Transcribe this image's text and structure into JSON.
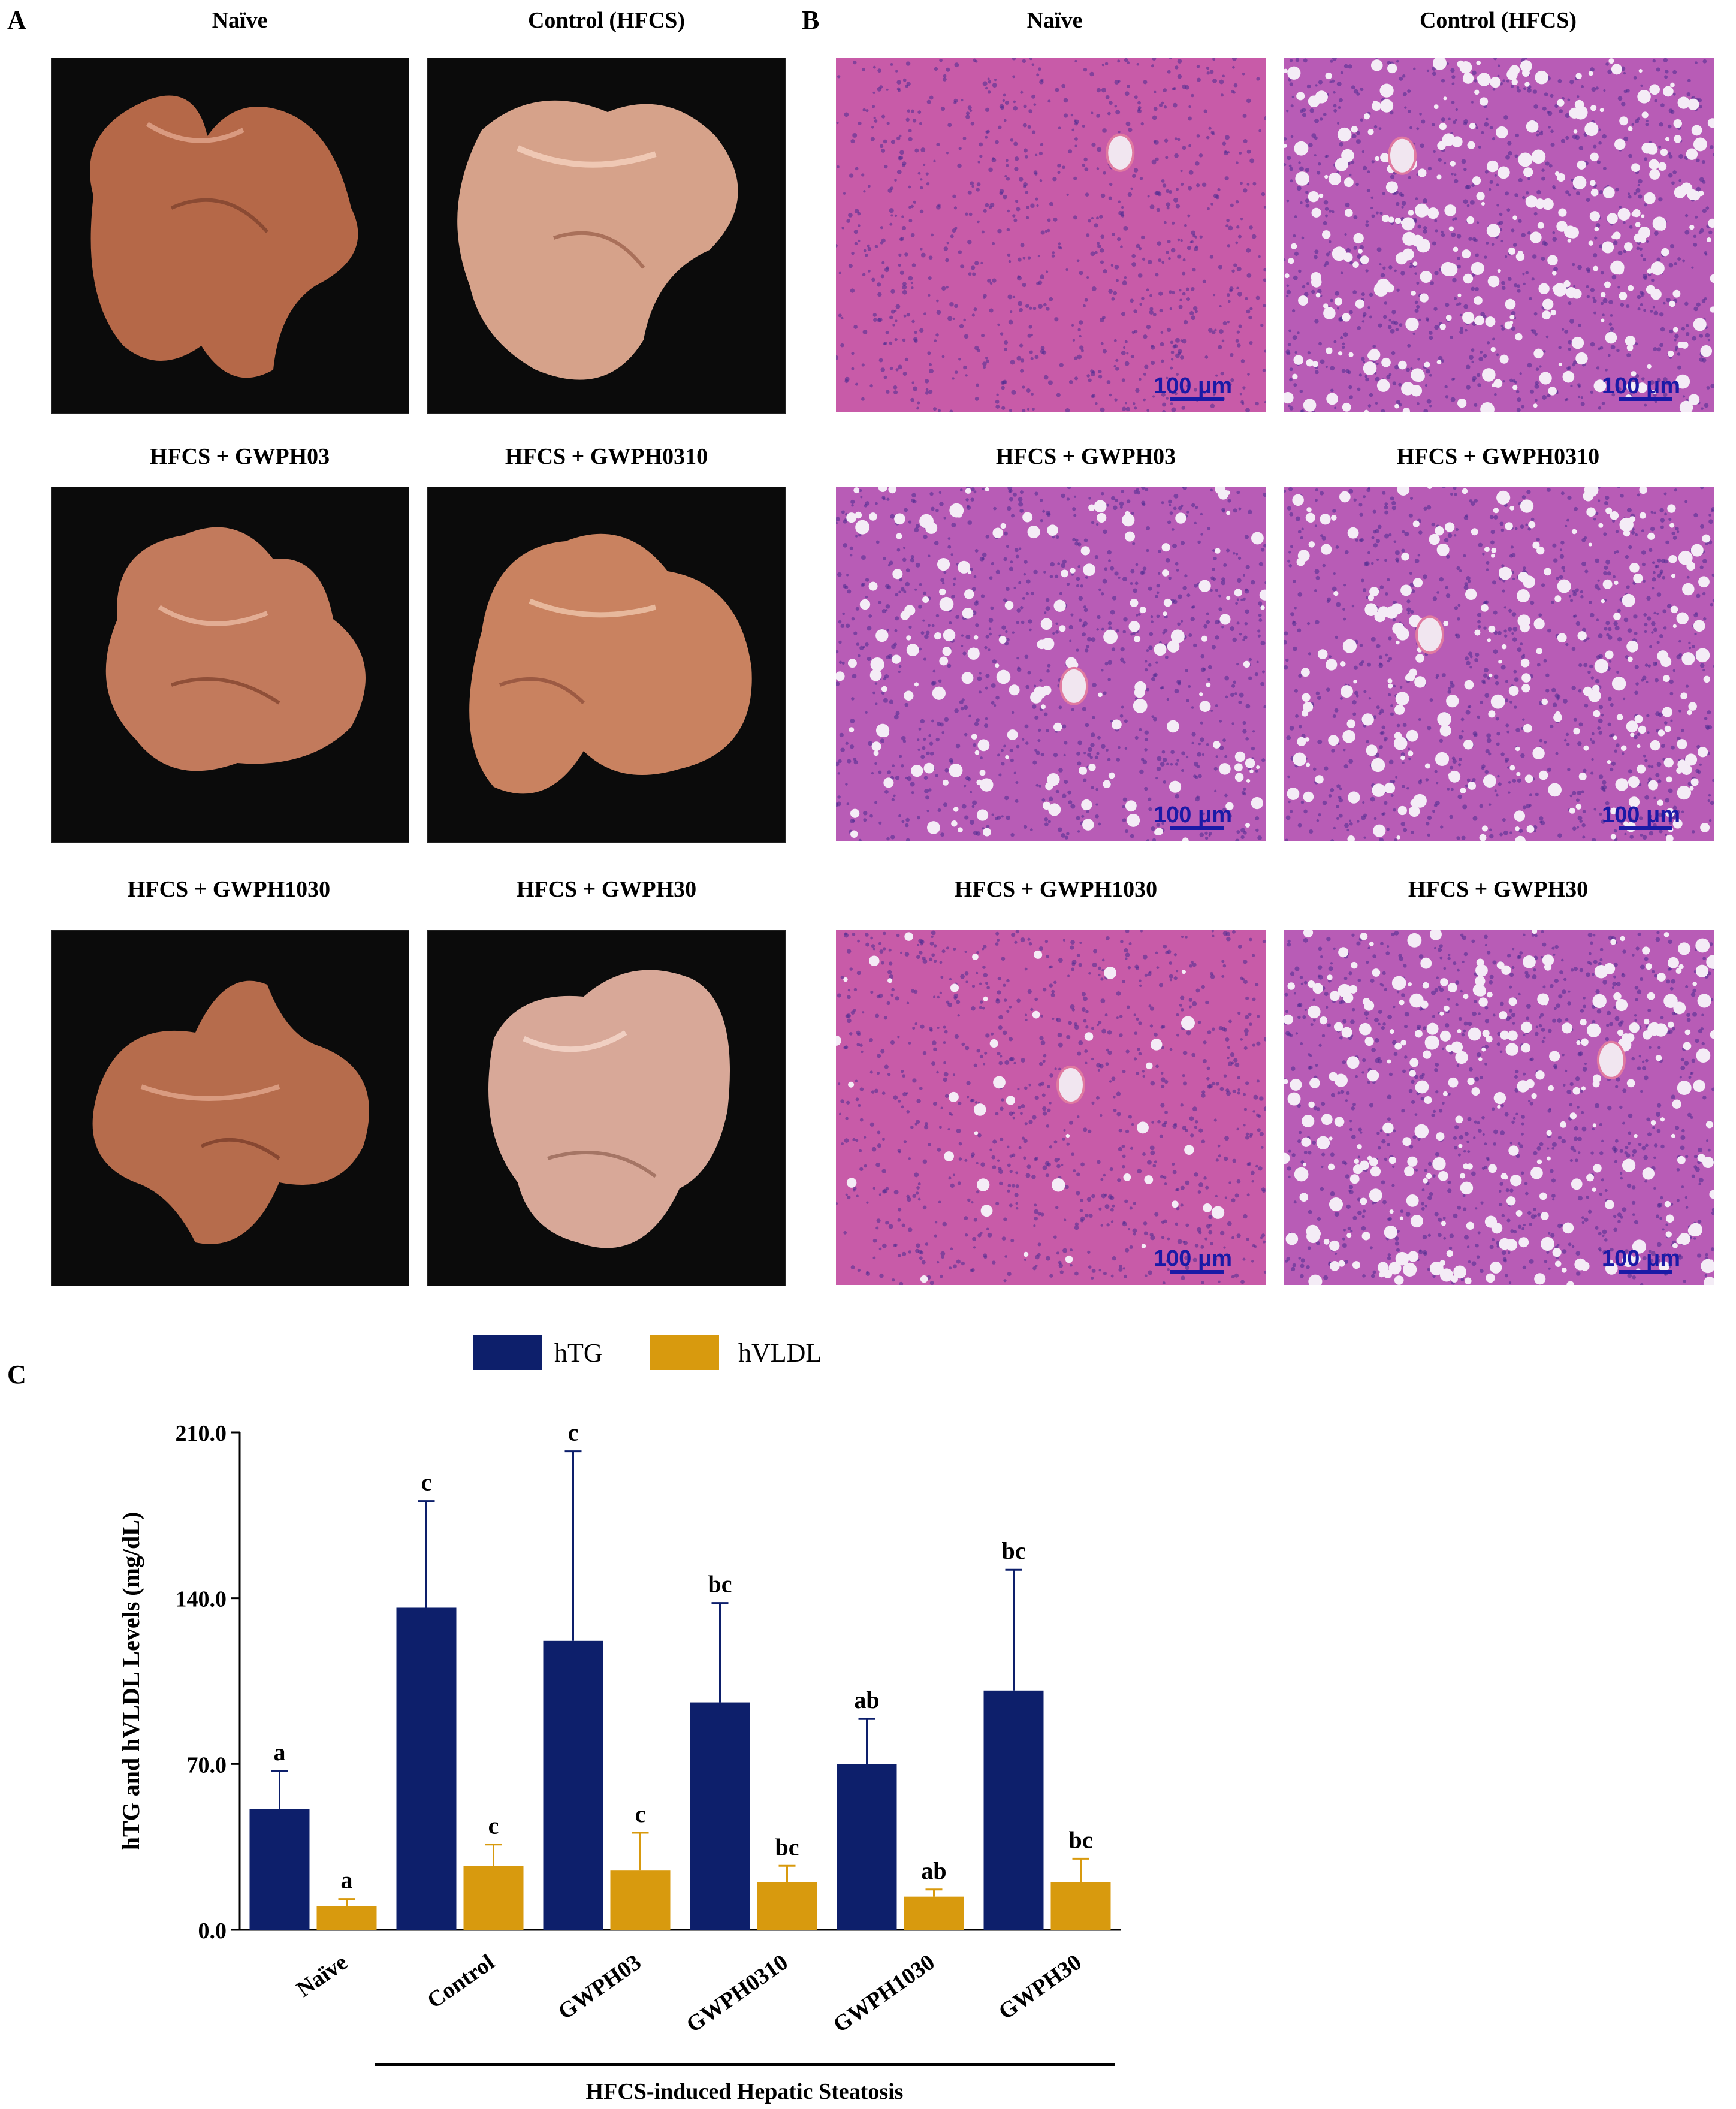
{
  "panels": {
    "a": {
      "letter": "A"
    },
    "b": {
      "letter": "B"
    },
    "c": {
      "letter": "C"
    }
  },
  "groups": [
    {
      "label": "Naïve"
    },
    {
      "label": "Control (HFCS)"
    },
    {
      "label": "HFCS + GWPH03"
    },
    {
      "label": "HFCS + GWPH0310"
    },
    {
      "label": "HFCS + GWPH1030"
    },
    {
      "label": "HFCS + GWPH30"
    }
  ],
  "scale_bar": "100 μm",
  "colors": {
    "hTG": "#0d1f6b",
    "hVLDL": "#d89a0e",
    "tissue_bg": "#0b0b0b",
    "liver": "#b76a4d",
    "he_stain": "#c24fb0",
    "scale_text": "#1a1aa6"
  },
  "chart_data": {
    "type": "bar",
    "title": "",
    "ylabel": "hTG and hVLDL Levels (mg/dL)",
    "xlabel": "",
    "ylim": [
      0,
      210
    ],
    "yticks": [
      "0.0",
      "70.0",
      "140.0",
      "210.0"
    ],
    "categories": [
      "Naïve",
      "Control",
      "GWPH03",
      "GWPH0310",
      "GWPH1030",
      "GWPH30"
    ],
    "group_label": "HFCS-induced Hepatic Steatosis",
    "series": [
      {
        "name": "hTG",
        "values": [
          51,
          136,
          122,
          96,
          70,
          101
        ],
        "errors": [
          16,
          45,
          80,
          42,
          19,
          51
        ],
        "letters": [
          "a",
          "c",
          "c",
          "bc",
          "ab",
          "bc"
        ]
      },
      {
        "name": "hVLDL",
        "values": [
          10,
          27,
          25,
          20,
          14,
          20
        ],
        "errors": [
          3,
          9,
          16,
          7,
          3,
          10
        ],
        "letters": [
          "a",
          "c",
          "c",
          "bc",
          "ab",
          "bc"
        ]
      }
    ]
  }
}
